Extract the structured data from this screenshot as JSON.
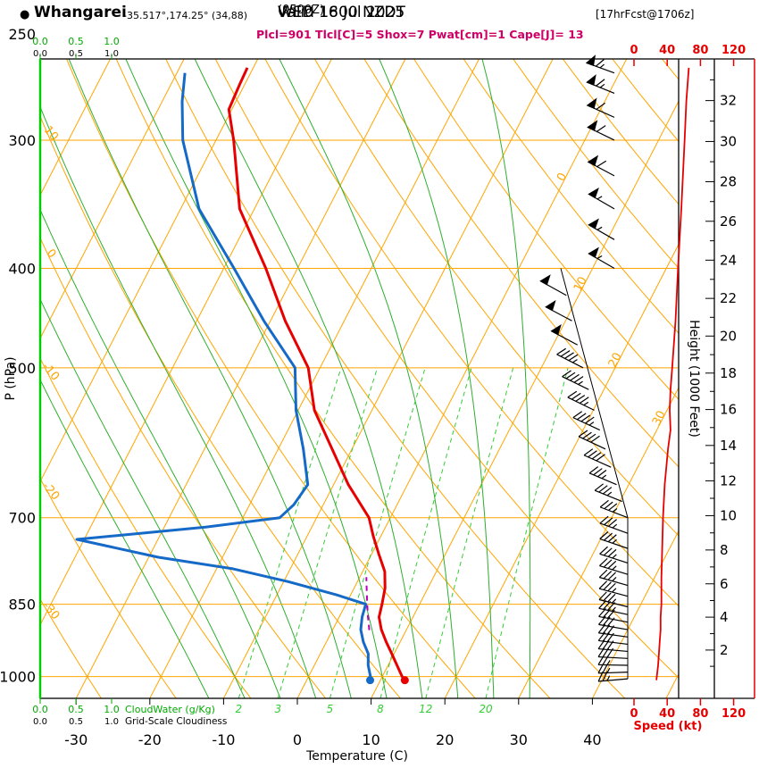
{
  "header": {
    "bullet": "●",
    "station": "Whangarei",
    "coords": "-35.517°,174.25° (34,88)",
    "valid_label": "Valid 1800 NZDT",
    "valid_zulu": "(0500Z)",
    "valid_date": "WED 16 Jul 2025",
    "fcst": "[17hrFcst@1706z]",
    "indices": "Plcl=901 Tlcl[C]=5 Shox=7 Pwat[cm]=1 Cape[J]= 13"
  },
  "chart_data": {
    "type": "skewt-log-p-sounding",
    "pressure_axis": {
      "label": "P (hPa)",
      "ticks": [
        250,
        300,
        400,
        500,
        700,
        850,
        1000
      ],
      "range": [
        250,
        1050
      ],
      "scale": "log"
    },
    "temperature_axis": {
      "label": "Temperature (C)",
      "ticks": [
        -30,
        -20,
        -10,
        0,
        10,
        20,
        30,
        40
      ]
    },
    "height_axis": {
      "label": "Height (1000 Feet)",
      "ticks": [
        2,
        4,
        6,
        8,
        10,
        12,
        14,
        16,
        18,
        20,
        22,
        24,
        26,
        28,
        30,
        32
      ],
      "unit": "kft"
    },
    "speed_axis": {
      "label": "Speed (kt)",
      "ticks": [
        0,
        40,
        80,
        120
      ]
    },
    "cloud_axes": {
      "ticks": [
        "0.0",
        "0.5",
        "1.0"
      ],
      "cloudwater_label": "CloudWater (g/Kg)",
      "cloudiness_label": "Grid-Scale Cloudiness"
    },
    "grid": {
      "isotherm_range": [
        -80,
        50
      ],
      "isotherm_step": 10,
      "dry_adiabat_range": [
        -50,
        150
      ],
      "dry_adiabat_step": 10,
      "dry_adiabat_labels": [
        10,
        0,
        -10,
        -20,
        -30
      ],
      "isotherm_labels": [
        0,
        10,
        20,
        30
      ],
      "moist_adiabats": [
        -15,
        -10,
        -5,
        0,
        5,
        10,
        15,
        20,
        25,
        30
      ],
      "mixing_ratio_lines": [
        2,
        3,
        5,
        8,
        12,
        20
      ]
    },
    "temperature_profile": [
      [
        1008,
        13.3
      ],
      [
        1000,
        12.7
      ],
      [
        975,
        11.2
      ],
      [
        950,
        9.7
      ],
      [
        925,
        8.1
      ],
      [
        900,
        6.6
      ],
      [
        875,
        5.4
      ],
      [
        850,
        4.9
      ],
      [
        820,
        4.2
      ],
      [
        790,
        3.0
      ],
      [
        760,
        1.0
      ],
      [
        730,
        -1.0
      ],
      [
        700,
        -2.9
      ],
      [
        650,
        -8.0
      ],
      [
        600,
        -12.7
      ],
      [
        550,
        -17.8
      ],
      [
        500,
        -21.6
      ],
      [
        450,
        -28.0
      ],
      [
        400,
        -34.3
      ],
      [
        350,
        -42.0
      ],
      [
        300,
        -47.6
      ],
      [
        280,
        -50.4
      ],
      [
        264,
        -50.7
      ],
      [
        255,
        -50.8
      ]
    ],
    "dewpoint_profile": [
      [
        1008,
        8.6
      ],
      [
        1000,
        8.4
      ],
      [
        975,
        7.3
      ],
      [
        950,
        6.5
      ],
      [
        925,
        5.0
      ],
      [
        900,
        3.8
      ],
      [
        875,
        3.1
      ],
      [
        850,
        2.7
      ],
      [
        832,
        -2.0
      ],
      [
        808,
        -9.4
      ],
      [
        785,
        -17.8
      ],
      [
        765,
        -28.7
      ],
      [
        735,
        -41.0
      ],
      [
        715,
        -24.4
      ],
      [
        700,
        -15.0
      ],
      [
        680,
        -14.0
      ],
      [
        650,
        -13.5
      ],
      [
        600,
        -16.6
      ],
      [
        550,
        -20.3
      ],
      [
        500,
        -23.4
      ],
      [
        450,
        -30.9
      ],
      [
        400,
        -38.6
      ],
      [
        350,
        -47.5
      ],
      [
        300,
        -54.5
      ],
      [
        275,
        -57.3
      ],
      [
        258,
        -58.9
      ]
    ],
    "parcel_path": [
      [
        901,
        5.0
      ],
      [
        875,
        3.9
      ],
      [
        850,
        2.9
      ],
      [
        825,
        1.9
      ],
      [
        800,
        0.9
      ]
    ],
    "wind_barbs": [
      [
        1005,
        265,
        25
      ],
      [
        990,
        268,
        26
      ],
      [
        975,
        271,
        27
      ],
      [
        960,
        273,
        28
      ],
      [
        945,
        275,
        29
      ],
      [
        930,
        277,
        30
      ],
      [
        915,
        278,
        31
      ],
      [
        900,
        280,
        31
      ],
      [
        885,
        281,
        32
      ],
      [
        870,
        282,
        33
      ],
      [
        855,
        284,
        33
      ],
      [
        835,
        285,
        33
      ],
      [
        815,
        286,
        33
      ],
      [
        795,
        287,
        34
      ],
      [
        775,
        288,
        34
      ],
      [
        750,
        289,
        34
      ],
      [
        725,
        290,
        35
      ],
      [
        700,
        291,
        35
      ],
      [
        675,
        292,
        36
      ],
      [
        650,
        293,
        37
      ],
      [
        625,
        294,
        39
      ],
      [
        600,
        295,
        41
      ],
      [
        575,
        295,
        44
      ],
      [
        550,
        296,
        43
      ],
      [
        525,
        296,
        44
      ],
      [
        500,
        297,
        46
      ],
      [
        475,
        298,
        48
      ],
      [
        450,
        298,
        50
      ],
      [
        425,
        299,
        52
      ],
      [
        400,
        300,
        53
      ],
      [
        375,
        300,
        55
      ],
      [
        350,
        300,
        57
      ],
      [
        325,
        298,
        59
      ],
      [
        300,
        296,
        61
      ],
      [
        285,
        294,
        62
      ],
      [
        270,
        292,
        64
      ],
      [
        258,
        290,
        66
      ]
    ],
    "wind_speed_profile": [
      [
        1008,
        27
      ],
      [
        975,
        29
      ],
      [
        950,
        30
      ],
      [
        925,
        31
      ],
      [
        900,
        32
      ],
      [
        875,
        32
      ],
      [
        850,
        33
      ],
      [
        800,
        33
      ],
      [
        750,
        34
      ],
      [
        700,
        35
      ],
      [
        650,
        37
      ],
      [
        600,
        41
      ],
      [
        575,
        44
      ],
      [
        550,
        43
      ],
      [
        525,
        44
      ],
      [
        500,
        46
      ],
      [
        450,
        50
      ],
      [
        400,
        53
      ],
      [
        350,
        57
      ],
      [
        300,
        61
      ],
      [
        275,
        63
      ],
      [
        255,
        66
      ]
    ]
  },
  "colors": {
    "isotherm": "#ffa500",
    "adiabat": "#ffa500",
    "moist": "#2eae2e",
    "mixing": "#33cc33",
    "cloud_scale": "#00aa00",
    "cloud_edge": "#00cc00",
    "temperature": "#e60000",
    "dewpoint": "#1569c7",
    "parcel": "#bb00bb",
    "wind": "#000000",
    "speed": "#e60000",
    "indices": "#cc0066"
  }
}
